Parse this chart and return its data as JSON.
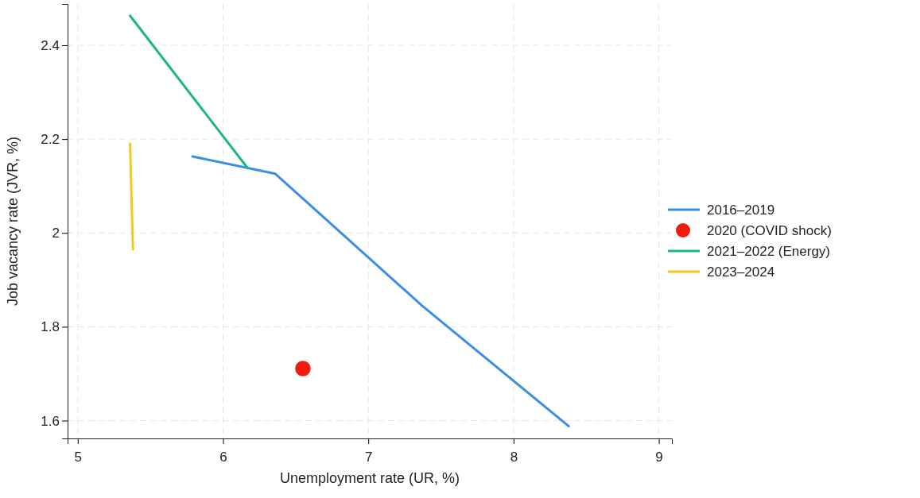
{
  "chart_data": {
    "type": "line",
    "xlabel": "Unemployment rate (UR, %)",
    "ylabel": "Job vacancy rate (JVR, %)",
    "xlim": [
      4.93,
      9.09
    ],
    "xticks": [
      5,
      6,
      7,
      8,
      9
    ],
    "ylim": [
      1.562,
      2.488
    ],
    "yticks": [
      1.6,
      1.8,
      2,
      2.2,
      2.4
    ],
    "grid": true,
    "legend": "right",
    "series": [
      {
        "name": "2016–2019",
        "color": "#3a8ee6",
        "x": [
          5.79,
          6.36,
          7.37,
          8.38
        ],
        "values": [
          2.163,
          2.126,
          1.845,
          1.588
        ]
      },
      {
        "name": "2020 (COVID shock)",
        "type": "scatter",
        "marker": "circle",
        "color": "#f21b0f",
        "x": [
          6.55
        ],
        "values": [
          1.711
        ]
      },
      {
        "name": "2021–2022 (Energy)",
        "color": "#1fb589",
        "x": [
          5.36,
          6.17
        ],
        "values": [
          2.463,
          2.138
        ]
      },
      {
        "name": "2023–2024",
        "color": "#f2c81a",
        "x": [
          5.36,
          5.38
        ],
        "values": [
          2.19,
          1.965
        ]
      }
    ]
  }
}
